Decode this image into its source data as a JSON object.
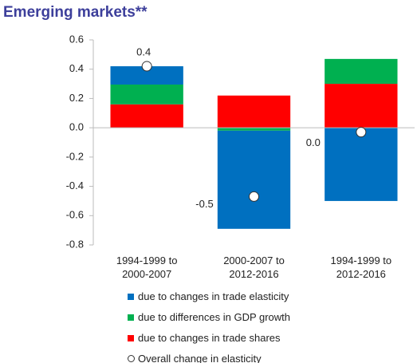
{
  "chart_data": {
    "type": "stacked-bar",
    "title": "Emerging markets**",
    "categories": [
      "1994-1999 to 2000-2007",
      "2000-2007 to 2012-2016",
      "1994-1999 to 2012-2016"
    ],
    "series": [
      {
        "name": "due to changes in trade elasticity",
        "color": "#0070c0",
        "values": [
          0.125,
          -0.67,
          -0.5
        ]
      },
      {
        "name": "due to differences in GDP growth",
        "color": "#00b050",
        "values": [
          0.135,
          -0.02,
          0.17
        ]
      },
      {
        "name": "due to changes in trade shares",
        "color": "#ff0000",
        "values": [
          0.16,
          0.22,
          0.3
        ]
      }
    ],
    "markers": {
      "name": "Overall change in elasticity",
      "values": [
        0.42,
        -0.47,
        -0.03
      ],
      "value_labels": [
        "0.4",
        "-0.5",
        "0.0"
      ]
    },
    "ylim": [
      -0.8,
      0.6
    ],
    "yticks": [
      -0.8,
      -0.6,
      -0.4,
      -0.2,
      {
        "value": 0,
        "label": "0.0"
      },
      0.2,
      0.4,
      0.6
    ]
  }
}
